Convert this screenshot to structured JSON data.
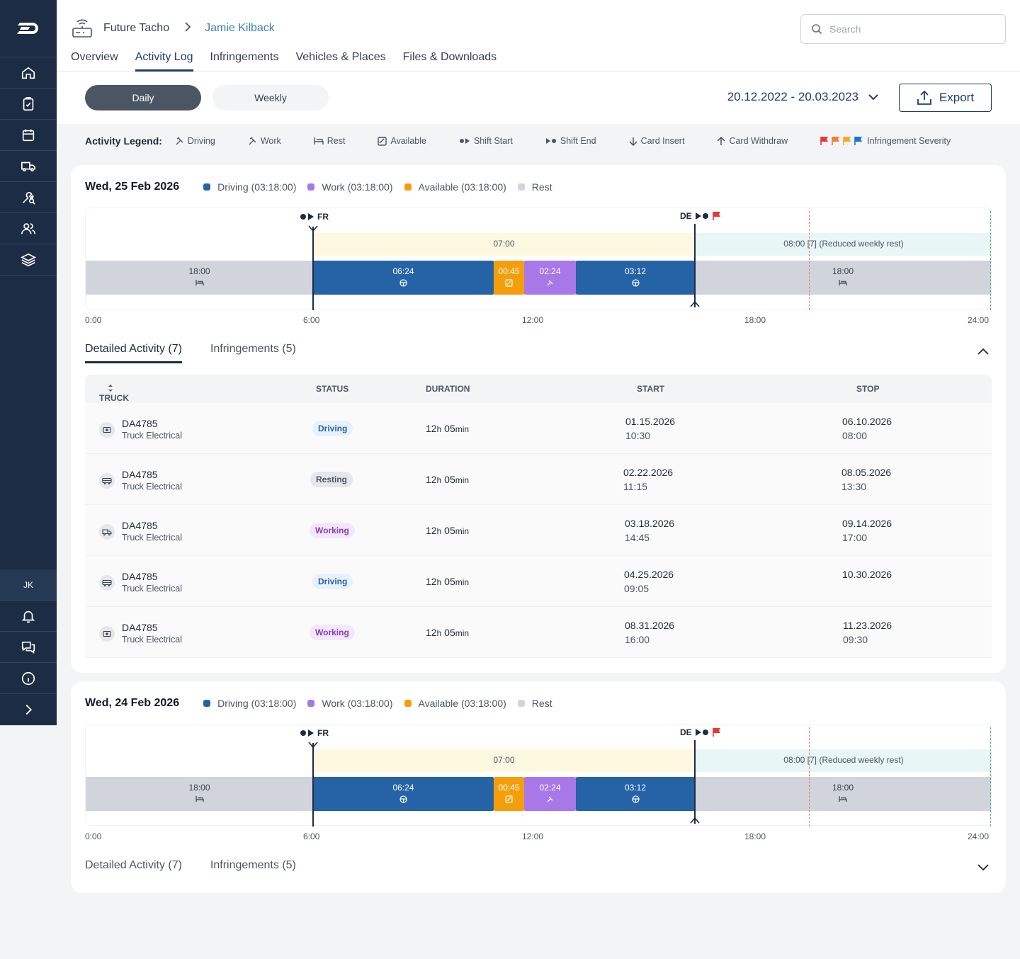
{
  "brand": {
    "logo_icon": "logo-icon"
  },
  "sidebar": {
    "items": [
      {
        "icon": "home-icon"
      },
      {
        "icon": "clipboard-check-icon"
      },
      {
        "icon": "calendar-icon"
      },
      {
        "icon": "truck-icon"
      },
      {
        "icon": "tools-search-icon"
      },
      {
        "icon": "users-icon"
      },
      {
        "icon": "layers-icon"
      }
    ],
    "avatar": "JK",
    "bottom_icons": [
      "bell-icon",
      "chat-icon",
      "info-icon",
      "chevron-right-icon"
    ]
  },
  "header": {
    "breadcrumb": {
      "root": "Future Tacho",
      "separator": ">",
      "current": "Jamie Kilback"
    },
    "search_placeholder": "Search",
    "tabs": [
      "Overview",
      "Activity Log",
      "Infringements",
      "Vehicles & Places",
      "Files & Downloads"
    ],
    "active_tab": "Activity Log"
  },
  "toolbar": {
    "view_daily": "Daily",
    "view_weekly": "Weekly",
    "date_range": "20.12.2022 - 20.03.2023",
    "export_label": "Export"
  },
  "legend": {
    "title": "Activity Legend:",
    "items": [
      "Driving",
      "Work",
      "Rest",
      "Available",
      "Shift Start",
      "Shift End",
      "Card Insert",
      "Card Withdraw"
    ],
    "severity_label": "Infringement Severity",
    "severity_colors": [
      "#e53935",
      "#f57c3b",
      "#f5a623",
      "#1e73d8"
    ]
  },
  "colors": {
    "driving": "#2563a6",
    "work": "#a978e8",
    "available": "#f59e0b",
    "rest": "#d1d5db",
    "shift_band": "#fff8e1",
    "rest_band": "#e8f6f6"
  },
  "days": [
    {
      "title": "Wed, 25 Feb 2026",
      "summary": [
        "Driving (03:18:00)",
        "Work (03:18:00)",
        "Available (03:18:00)",
        "Rest"
      ],
      "start_marker": "FR",
      "end_marker": "DE",
      "shift_label": "07:00",
      "rest_band_label": "08:00 [7] (Reduced weekly rest)",
      "segments": [
        "18:00",
        "06:24",
        "00:45",
        "02:24",
        "03:12",
        "18:00"
      ],
      "axis": [
        "0:00",
        "6:00",
        "12:00",
        "18:00",
        "24:00"
      ],
      "tabs": [
        "Detailed Activity (7)",
        "Infringements (5)"
      ],
      "expanded": true
    },
    {
      "title": "Wed, 24 Feb 2026",
      "summary": [
        "Driving (03:18:00)",
        "Work (03:18:00)",
        "Available (03:18:00)",
        "Rest"
      ],
      "start_marker": "FR",
      "end_marker": "DE",
      "shift_label": "07:00",
      "rest_band_label": "08:00 [7] (Reduced weekly rest)",
      "segments": [
        "18:00",
        "06:24",
        "00:45",
        "02:24",
        "03:12",
        "18:00"
      ],
      "axis": [
        "0:00",
        "6:00",
        "12:00",
        "18:00",
        "24:00"
      ],
      "tabs": [
        "Detailed Activity (7)",
        "Infringements (5)"
      ],
      "expanded": false
    }
  ],
  "table": {
    "columns": [
      "TRUCK",
      "STATUS",
      "DURATION",
      "START",
      "STOP"
    ],
    "rows": [
      {
        "truck": "DA4785",
        "type": "Truck Electrical",
        "status": "Driving",
        "dur_h": "12",
        "dur_m": "05",
        "start_date": "01.15.2026",
        "start_time": "10:30",
        "stop_date": "06.10.2026",
        "stop_time": "08:00"
      },
      {
        "truck": "DA4785",
        "type": "Truck Electrical",
        "status": "Resting",
        "dur_h": "12",
        "dur_m": "05",
        "start_date": "02.22.2026",
        "start_time": "11:15",
        "stop_date": "08.05.2026",
        "stop_time": "13:30"
      },
      {
        "truck": "DA4785",
        "type": "Truck Electrical",
        "status": "Working",
        "dur_h": "12",
        "dur_m": "05",
        "start_date": "03.18.2026",
        "start_time": "14:45",
        "stop_date": "09.14.2026",
        "stop_time": "17:00"
      },
      {
        "truck": "DA4785",
        "type": "Truck Electrical",
        "status": "Driving",
        "dur_h": "12",
        "dur_m": "05",
        "start_date": "04.25.2026",
        "start_time": "09:05",
        "stop_date": "10.30.2026",
        "stop_time": ""
      },
      {
        "truck": "DA4785",
        "type": "Truck Electrical",
        "status": "Working",
        "dur_h": "12",
        "dur_m": "05",
        "start_date": "08.31.2026",
        "start_time": "16:00",
        "stop_date": "11.23.2026",
        "stop_time": "09:30"
      }
    ],
    "duration_h_unit": "h",
    "duration_m_unit": "min"
  }
}
